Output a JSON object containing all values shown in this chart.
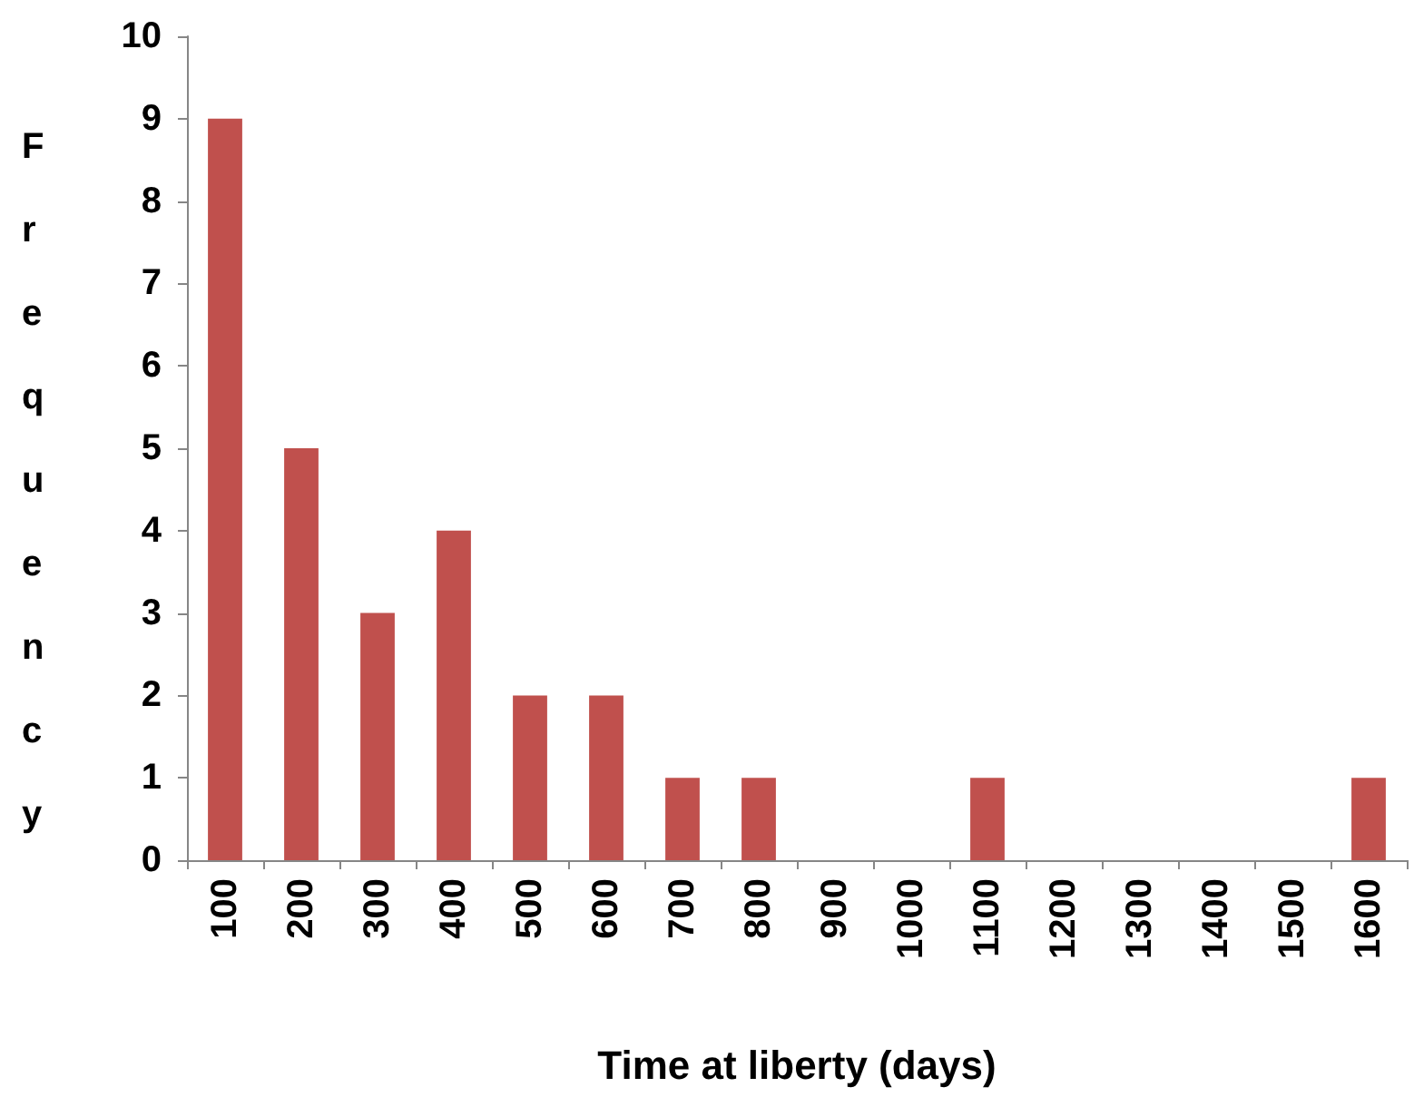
{
  "chart_data": {
    "type": "bar",
    "xlabel": "Time at liberty (days)",
    "ylabel": "Frequency",
    "categories": [
      "100",
      "200",
      "300",
      "400",
      "500",
      "600",
      "700",
      "800",
      "900",
      "1000",
      "1100",
      "1200",
      "1300",
      "1400",
      "1500",
      "1600"
    ],
    "values": [
      9,
      5,
      3,
      4,
      2,
      2,
      1,
      1,
      0,
      0,
      1,
      0,
      0,
      0,
      0,
      1
    ],
    "color": "#c0504d",
    "ylim": [
      0,
      10
    ],
    "yticks": [
      0,
      1,
      2,
      3,
      4,
      5,
      6,
      7,
      8,
      9,
      10
    ],
    "grid": false
  }
}
